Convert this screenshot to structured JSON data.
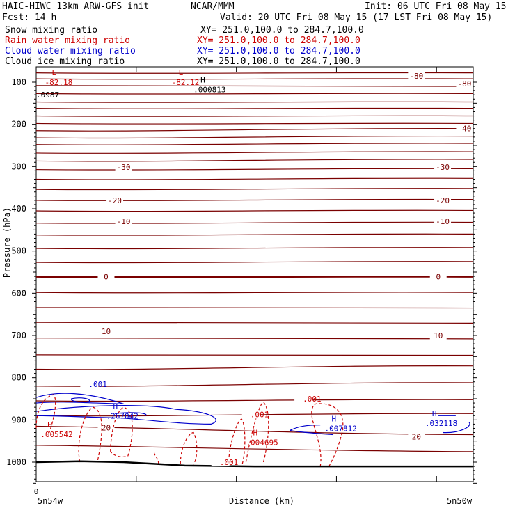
{
  "header": {
    "title_left": "HAIC-HIWC 13km ARW-GFS init",
    "center": "NCAR/MMM",
    "init": "Init: 06 UTC Fri 08 May 15",
    "fcst": "Fcst:   14 h",
    "valid": "Valid: 20 UTC Fri 08 May 15 (17 LST Fri 08 May 15)"
  },
  "fields": [
    {
      "name": "Snow mixing ratio",
      "xy": "XY= 251.0,100.0 to 284.7,100.0",
      "color": "#000000"
    },
    {
      "name": "Rain water mixing ratio",
      "xy": "XY= 251.0,100.0 to 284.7,100.0",
      "color": "#cc0000"
    },
    {
      "name": "Cloud water mixing ratio",
      "xy": "XY= 251.0,100.0 to 284.7,100.0",
      "color": "#0000cc"
    },
    {
      "name": "Cloud ice mixing ratio",
      "xy": "XY= 251.0,100.0 to 284.7,100.0",
      "color": "#000000"
    }
  ],
  "chart_data": {
    "type": "line",
    "ylabel": "Pressure (hPa)",
    "xlabel": "Distance (km)",
    "x_origin_label": "0",
    "x_left_label": "5n54w",
    "x_right_label": "5n50w",
    "y_ticks": [
      100,
      200,
      300,
      400,
      500,
      600,
      700,
      800,
      900,
      1000
    ],
    "ylim": [
      1050,
      20
    ],
    "x_tick_fractions": [
      0,
      0.229,
      0.458,
      0.687,
      0.916
    ],
    "temperature_isotherms": [
      {
        "p_left": 78,
        "p_right": 78
      },
      {
        "p_left": 92,
        "p_right": 92
      },
      {
        "p_left": 108,
        "p_right": 110
      },
      {
        "p_left": 127,
        "p_right": 127
      },
      {
        "p_left": 147,
        "p_right": 147
      },
      {
        "p_left": 162,
        "p_right": 162
      },
      {
        "p_left": 180,
        "p_right": 180
      },
      {
        "p_left": 198,
        "p_right": 198
      },
      {
        "p_left": 215,
        "p_right": 210
      },
      {
        "p_left": 232,
        "p_right": 228
      },
      {
        "p_left": 248,
        "p_right": 245
      },
      {
        "p_left": 268,
        "p_right": 265
      },
      {
        "p_left": 287,
        "p_right": 283
      },
      {
        "p_left": 307,
        "p_right": 305
      },
      {
        "p_left": 330,
        "p_right": 328
      },
      {
        "p_left": 354,
        "p_right": 352
      },
      {
        "p_left": 380,
        "p_right": 378
      },
      {
        "p_left": 405,
        "p_right": 404
      },
      {
        "p_left": 434,
        "p_right": 432
      },
      {
        "p_left": 462,
        "p_right": 460
      },
      {
        "p_left": 494,
        "p_right": 492
      },
      {
        "p_left": 527,
        "p_right": 525
      },
      {
        "p_left": 561,
        "p_right": 561
      },
      {
        "p_left": 598,
        "p_right": 598
      },
      {
        "p_left": 634,
        "p_right": 635
      },
      {
        "p_left": 669,
        "p_right": 671
      },
      {
        "p_left": 706,
        "p_right": 708
      },
      {
        "p_left": 746,
        "p_right": 747
      },
      {
        "p_left": 780,
        "p_right": 772
      },
      {
        "p_left": 820,
        "p_right": 812
      },
      {
        "p_left": 855,
        "p_right": 852
      },
      {
        "p_left": 890,
        "p_right": 885
      },
      {
        "p_left": 915,
        "p_right": 935
      },
      {
        "p_left": 960,
        "p_right": 975
      }
    ],
    "isotherm_labels": [
      {
        "text": "-80",
        "x": 0.87,
        "p": 85
      },
      {
        "text": "-80",
        "x": 0.98,
        "p": 103
      },
      {
        "text": "-40",
        "x": 0.98,
        "p": 210
      },
      {
        "text": "-30",
        "x": 0.2,
        "p": 301
      },
      {
        "text": "-30",
        "x": 0.93,
        "p": 301
      },
      {
        "text": "-20",
        "x": 0.18,
        "p": 380
      },
      {
        "text": "-20",
        "x": 0.93,
        "p": 380
      },
      {
        "text": "-10",
        "x": 0.2,
        "p": 430
      },
      {
        "text": "-10",
        "x": 0.93,
        "p": 430
      },
      {
        "text": "0",
        "x": 0.16,
        "p": 561
      },
      {
        "text": "0",
        "x": 0.92,
        "p": 561
      },
      {
        "text": "10",
        "x": 0.16,
        "p": 690
      },
      {
        "text": "10",
        "x": 0.92,
        "p": 700
      },
      {
        "text": "20",
        "x": 0.16,
        "p": 918
      },
      {
        "text": "20",
        "x": 0.87,
        "p": 940
      }
    ],
    "surface_pressure": [
      {
        "x": 0.0,
        "p": 1000
      },
      {
        "x": 0.1,
        "p": 998
      },
      {
        "x": 0.2,
        "p": 1000
      },
      {
        "x": 0.34,
        "p": 1008
      },
      {
        "x": 0.5,
        "p": 1010
      },
      {
        "x": 1.0,
        "p": 1010
      }
    ],
    "extrema": [
      {
        "kind": "L",
        "text": "-82.18",
        "x": 0.02,
        "p": 100,
        "color": "#cc0000"
      },
      {
        "kind": "L",
        "text": "-82.12",
        "x": 0.31,
        "p": 100,
        "color": "#cc0000"
      },
      {
        "kind": "H",
        "text": ".000813",
        "x": 0.36,
        "p": 117,
        "color": "#000000"
      },
      {
        "kind": "",
        "text": ".0987",
        "x": 0.0,
        "p": 130,
        "color": "#000000"
      },
      {
        "kind": "H",
        "text": ".267042",
        "x": 0.16,
        "p": 890,
        "color": "#0000cc"
      },
      {
        "kind": "H",
        "text": ".005542",
        "x": 0.01,
        "p": 934,
        "color": "#cc0000"
      },
      {
        "kind": "H",
        "text": ".004695",
        "x": 0.48,
        "p": 953,
        "color": "#cc0000"
      },
      {
        "kind": "H",
        "text": ".007812",
        "x": 0.66,
        "p": 920,
        "color": "#0000cc"
      },
      {
        "kind": "H",
        "text": ".032118",
        "x": 0.89,
        "p": 908,
        "color": "#0000cc"
      }
    ],
    "contour_labels": [
      {
        "text": ".001",
        "x": 0.12,
        "p": 820,
        "color": "#0000cc"
      },
      {
        "text": ".001",
        "x": 0.49,
        "p": 892,
        "color": "#cc0000"
      },
      {
        "text": ".001",
        "x": 0.61,
        "p": 855,
        "color": "#cc0000"
      },
      {
        "text": ".001",
        "x": 0.42,
        "p": 1005,
        "color": "#cc0000"
      }
    ]
  }
}
